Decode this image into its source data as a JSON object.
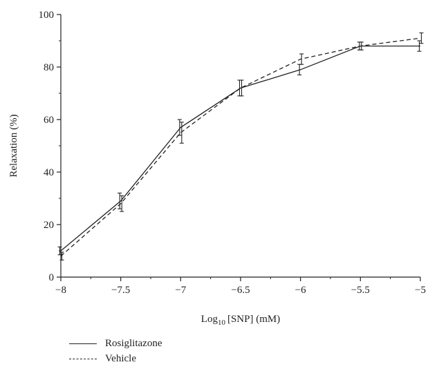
{
  "chart_data": {
    "type": "line",
    "xlabel_prefix": "Log",
    "xlabel_sub": "10",
    "xlabel_suffix": "[SNP] (mM)",
    "ylabel": "Relaxation (%)",
    "xlim": [
      -8,
      -5
    ],
    "ylim": [
      0,
      100
    ],
    "x_ticks": [
      -8,
      -7.5,
      -7,
      -6.5,
      -6,
      -5.5,
      -5
    ],
    "x_tick_labels": [
      "−8",
      "−7.5",
      "−7",
      "−6.5",
      "−6",
      "−5.5",
      "−5"
    ],
    "y_ticks": [
      0,
      20,
      40,
      60,
      80,
      100
    ],
    "y_tick_labels": [
      "0",
      "20",
      "40",
      "60",
      "80",
      "100"
    ],
    "grid": false,
    "legend_position": "bottom-left",
    "line_color": "#231f20",
    "x": [
      -8,
      -7.5,
      -7,
      -6.5,
      -6,
      -5.5,
      -5
    ],
    "series": [
      {
        "name": "Rosiglitazone",
        "style": "solid",
        "values": [
          10,
          29,
          57,
          72,
          79,
          88,
          88
        ],
        "error": [
          1.5,
          3,
          3,
          3,
          2,
          1.5,
          2
        ]
      },
      {
        "name": "Vehicle",
        "style": "dashed",
        "values": [
          8,
          28,
          55,
          72,
          83,
          88,
          91
        ],
        "error": [
          1.5,
          3,
          4,
          3,
          2,
          1.5,
          2
        ]
      }
    ]
  }
}
